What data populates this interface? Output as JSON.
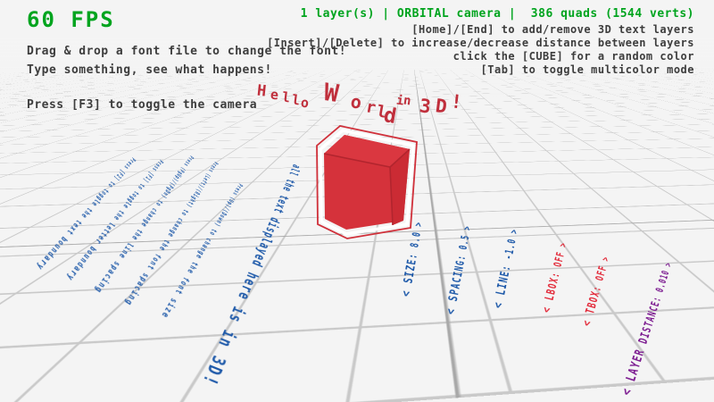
{
  "hud": {
    "fps": "60 FPS",
    "hint_drag_drop": "Drag & drop a font file to change the font!",
    "hint_type": "Type something, see what happens!",
    "hint_camera": "Press [F3] to toggle the camera",
    "status": "1 layer(s) | ORBITAL camera |  386 quads (1544 verts)",
    "hint_layers": "[Home]/[End] to add/remove 3D text layers",
    "hint_layer_distance": "[Insert]/[Delete] to increase/decrease distance between layers",
    "hint_cube": "click the [CUBE] for a random color",
    "hint_multicolor": "[Tab] to toggle multicolor mode"
  },
  "scene": {
    "headline": "Hello World in 3D!",
    "floor_big_text": "all the text displayed here is in 3D!",
    "floor_instructions": [
      "Press [F2] to toggle the text boundary",
      "Press [F1] to toggle the letter boundary",
      "Press (PgUp)/(PgDn) to change the line spacing",
      "Press (Left)/(Right) to change the font spacing",
      "Press (Up)/(Down) to change the font size"
    ],
    "floor_settings": [
      {
        "id": "size",
        "label": "< SIZE: 8.0 >",
        "color": "#1b57a8"
      },
      {
        "id": "spacing",
        "label": "< SPACING: 0.5 >",
        "color": "#1b57a8"
      },
      {
        "id": "line",
        "label": "< LINE: -1.0 >",
        "color": "#1b57a8"
      },
      {
        "id": "lbox",
        "label": "< LBOX: OFF >",
        "color": "#e22737"
      },
      {
        "id": "tbox",
        "label": "< TBOX: OFF >",
        "color": "#e22737"
      },
      {
        "id": "layer_distance",
        "label": "< LAYER DISTANCE: 0.010 >",
        "color": "#7c1b90"
      }
    ],
    "cube_color": "#d5323b"
  },
  "colors": {
    "background": "#f4f4f4",
    "grid_line": "#c9c9c9",
    "grid_axis": "#a8a8a8",
    "hud_green": "#00a41e",
    "hud_gray": "#3d3d3d",
    "text_blue": "#1b57a8",
    "text_red": "#c02f3c",
    "text_purple": "#7c1b90"
  }
}
